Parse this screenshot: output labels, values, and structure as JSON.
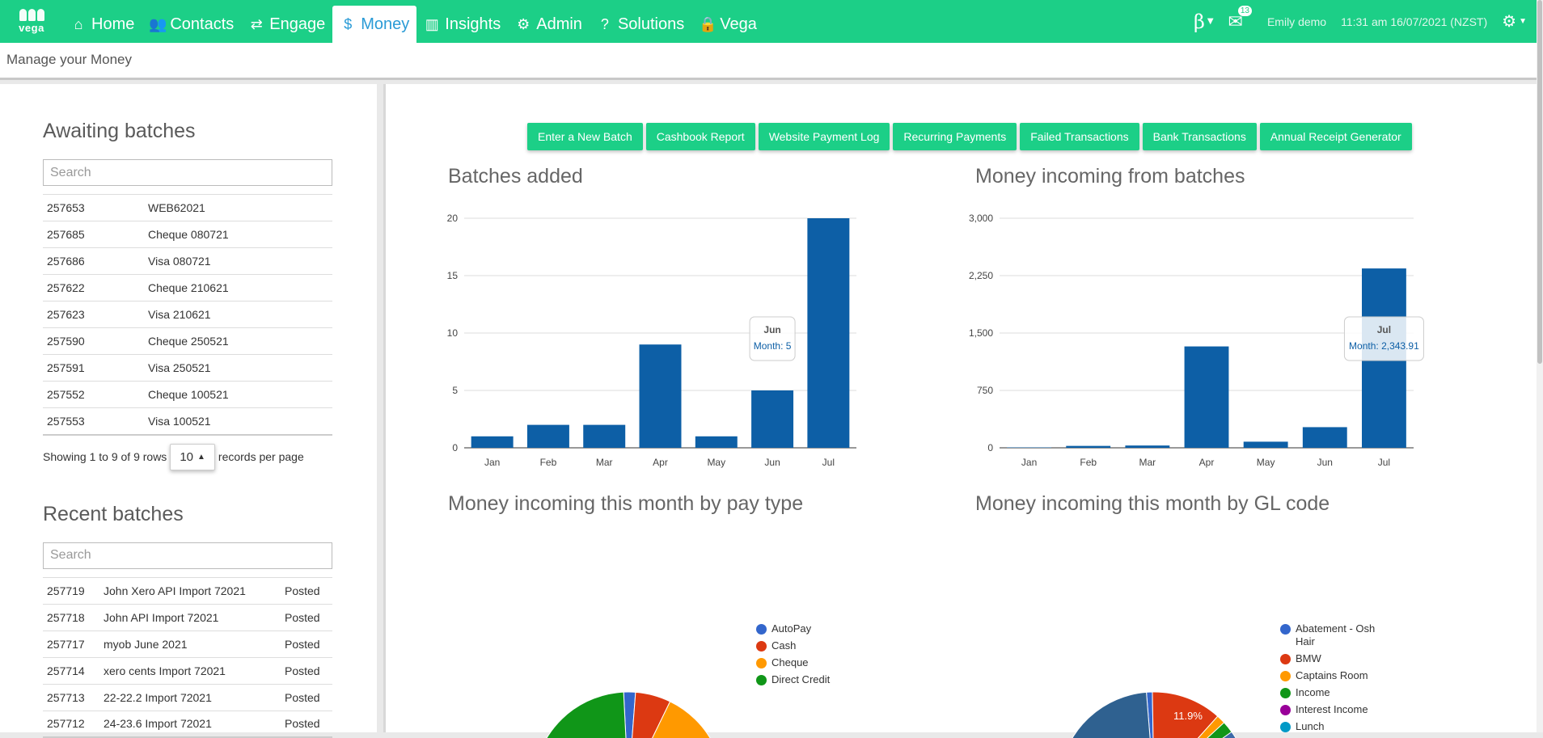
{
  "navbar": {
    "logo_text": "vega",
    "items": [
      {
        "label": "Home",
        "icon": "home-icon",
        "glyph": "⌂",
        "active": false
      },
      {
        "label": "Contacts",
        "icon": "users-icon",
        "glyph": "👥",
        "active": false
      },
      {
        "label": "Engage",
        "icon": "exchange-icon",
        "glyph": "⇄",
        "active": false
      },
      {
        "label": "Money",
        "icon": "dollar-icon",
        "glyph": "$",
        "active": true
      },
      {
        "label": "Insights",
        "icon": "bar-chart-icon",
        "glyph": "▥",
        "active": false
      },
      {
        "label": "Admin",
        "icon": "cogs-icon",
        "glyph": "⚙",
        "active": false
      },
      {
        "label": "Solutions",
        "icon": "question-circle-icon",
        "glyph": "?",
        "active": false
      },
      {
        "label": "Vega",
        "icon": "lock-icon",
        "glyph": "🔒",
        "active": false
      }
    ],
    "beta_label": "β",
    "mail_count": "13",
    "user": "Emily demo",
    "datetime": "11:31 am 16/07/2021 (NZST)"
  },
  "subheader": {
    "title": "Manage your Money"
  },
  "awaiting": {
    "title": "Awaiting batches",
    "search_placeholder": "Search",
    "rows": [
      {
        "id": "257653",
        "name": "WEB62021"
      },
      {
        "id": "257685",
        "name": "Cheque 080721"
      },
      {
        "id": "257686",
        "name": "Visa 080721"
      },
      {
        "id": "257622",
        "name": "Cheque 210621"
      },
      {
        "id": "257623",
        "name": "Visa 210621"
      },
      {
        "id": "257590",
        "name": "Cheque 250521"
      },
      {
        "id": "257591",
        "name": "Visa 250521"
      },
      {
        "id": "257552",
        "name": "Cheque 100521"
      },
      {
        "id": "257553",
        "name": "Visa 100521"
      }
    ],
    "showing_text": "Showing 1 to 9 of 9 rows",
    "page_size": "10",
    "per_page_text": "records per page"
  },
  "recent": {
    "title": "Recent batches",
    "search_placeholder": "Search",
    "rows": [
      {
        "id": "257719",
        "name": "John Xero API Import 72021",
        "status": "Posted"
      },
      {
        "id": "257718",
        "name": "John API Import 72021",
        "status": "Posted"
      },
      {
        "id": "257717",
        "name": "myob June 2021",
        "status": "Posted"
      },
      {
        "id": "257714",
        "name": "xero cents Import 72021",
        "status": "Posted"
      },
      {
        "id": "257713",
        "name": "22-22.2 Import 72021",
        "status": "Posted"
      },
      {
        "id": "257712",
        "name": "24-23.6 Import 72021",
        "status": "Posted"
      }
    ]
  },
  "buttons": [
    "Enter a New Batch",
    "Cashbook Report",
    "Website Payment Log",
    "Recurring Payments",
    "Failed Transactions",
    "Bank Transactions",
    "Annual Receipt Generator"
  ],
  "colors": {
    "accent": "#1ccf87",
    "bar": "#0d5fa6",
    "active_nav_text": "#2a9bd6"
  },
  "chart_data": [
    {
      "type": "bar",
      "title": "Batches added",
      "categories": [
        "Jan",
        "Feb",
        "Mar",
        "Apr",
        "May",
        "Jun",
        "Jul"
      ],
      "values": [
        1,
        2,
        2,
        9,
        1,
        5,
        20
      ],
      "ylim": [
        0,
        20
      ],
      "yticks": [
        0,
        5,
        10,
        15,
        20
      ],
      "ytick_labels": [
        "0",
        "5",
        "10",
        "15",
        "20"
      ],
      "tooltip": {
        "category": "Jun",
        "label": "Month: 5"
      }
    },
    {
      "type": "bar",
      "title": "Money incoming from batches",
      "categories": [
        "Jan",
        "Feb",
        "Mar",
        "Apr",
        "May",
        "Jun",
        "Jul"
      ],
      "values": [
        5,
        25,
        30,
        1325,
        80,
        270,
        2343.91
      ],
      "ylim": [
        0,
        3000
      ],
      "yticks": [
        0,
        750,
        1500,
        2250,
        3000
      ],
      "ytick_labels": [
        "0",
        "750",
        "1,500",
        "2,250",
        "3,000"
      ],
      "tooltip": {
        "category": "Jul",
        "label": "Month: 2,343.91"
      }
    },
    {
      "type": "pie",
      "title": "Money incoming this month by pay type",
      "legend": [
        {
          "name": "AutoPay",
          "color": "#3366cc"
        },
        {
          "name": "Cash",
          "color": "#dc3912"
        },
        {
          "name": "Cheque",
          "color": "#ff9900"
        },
        {
          "name": "Direct Credit",
          "color": "#109618"
        }
      ]
    },
    {
      "type": "pie",
      "title": "Money incoming this month by GL code",
      "legend": [
        {
          "name": "Abatement - Osh Hair",
          "color": "#3366cc"
        },
        {
          "name": "BMW",
          "color": "#dc3912"
        },
        {
          "name": "Captains Room",
          "color": "#ff9900"
        },
        {
          "name": "Income",
          "color": "#109618"
        },
        {
          "name": "Interest Income",
          "color": "#990099"
        },
        {
          "name": "Lunch",
          "color": "#0099c6"
        }
      ],
      "slice_label": "11.9%"
    }
  ]
}
